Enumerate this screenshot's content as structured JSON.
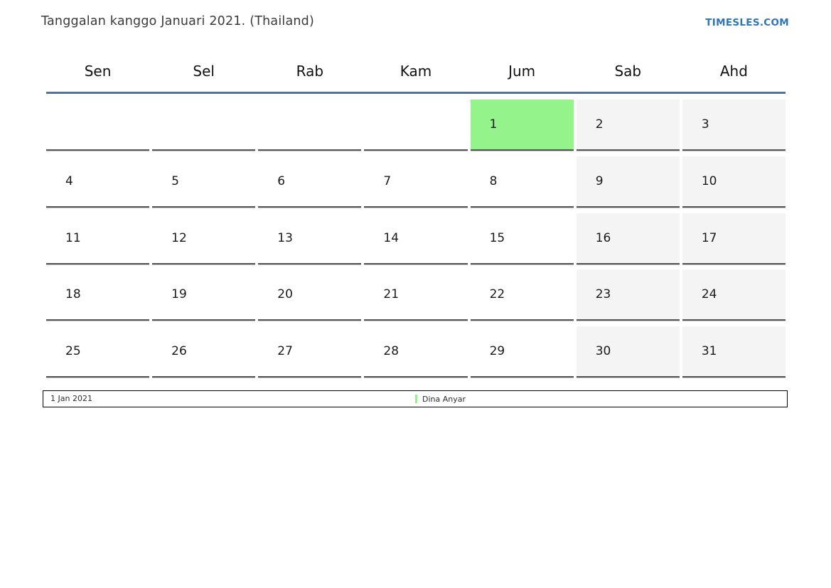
{
  "page": {
    "title": "Tanggalan kanggo Januari 2021. (Thailand)",
    "brand": "TIMESLES.COM"
  },
  "calendar": {
    "month": "Januari 2021",
    "weekdays": [
      "Sen",
      "Sel",
      "Rab",
      "Kam",
      "Jum",
      "Sab",
      "Ahd"
    ],
    "weekend_columns": [
      5,
      6
    ],
    "weeks": [
      [
        "",
        "",
        "",
        "",
        "1",
        "2",
        "3"
      ],
      [
        "4",
        "5",
        "6",
        "7",
        "8",
        "9",
        "10"
      ],
      [
        "11",
        "12",
        "13",
        "14",
        "15",
        "16",
        "17"
      ],
      [
        "18",
        "19",
        "20",
        "21",
        "22",
        "23",
        "24"
      ],
      [
        "25",
        "26",
        "27",
        "28",
        "29",
        "30",
        "31"
      ]
    ],
    "holidays": [
      "1"
    ]
  },
  "footer": {
    "date_label": "1 Jan 2021",
    "legend": [
      {
        "label": "Dina Anyar"
      }
    ]
  },
  "colors": {
    "holiday_green": "#94f38a",
    "weekend_gray": "#f4f4f4",
    "header_rule_blue": "#54749e",
    "brand_blue": "#2e74b8",
    "cell_border": "#555555"
  }
}
